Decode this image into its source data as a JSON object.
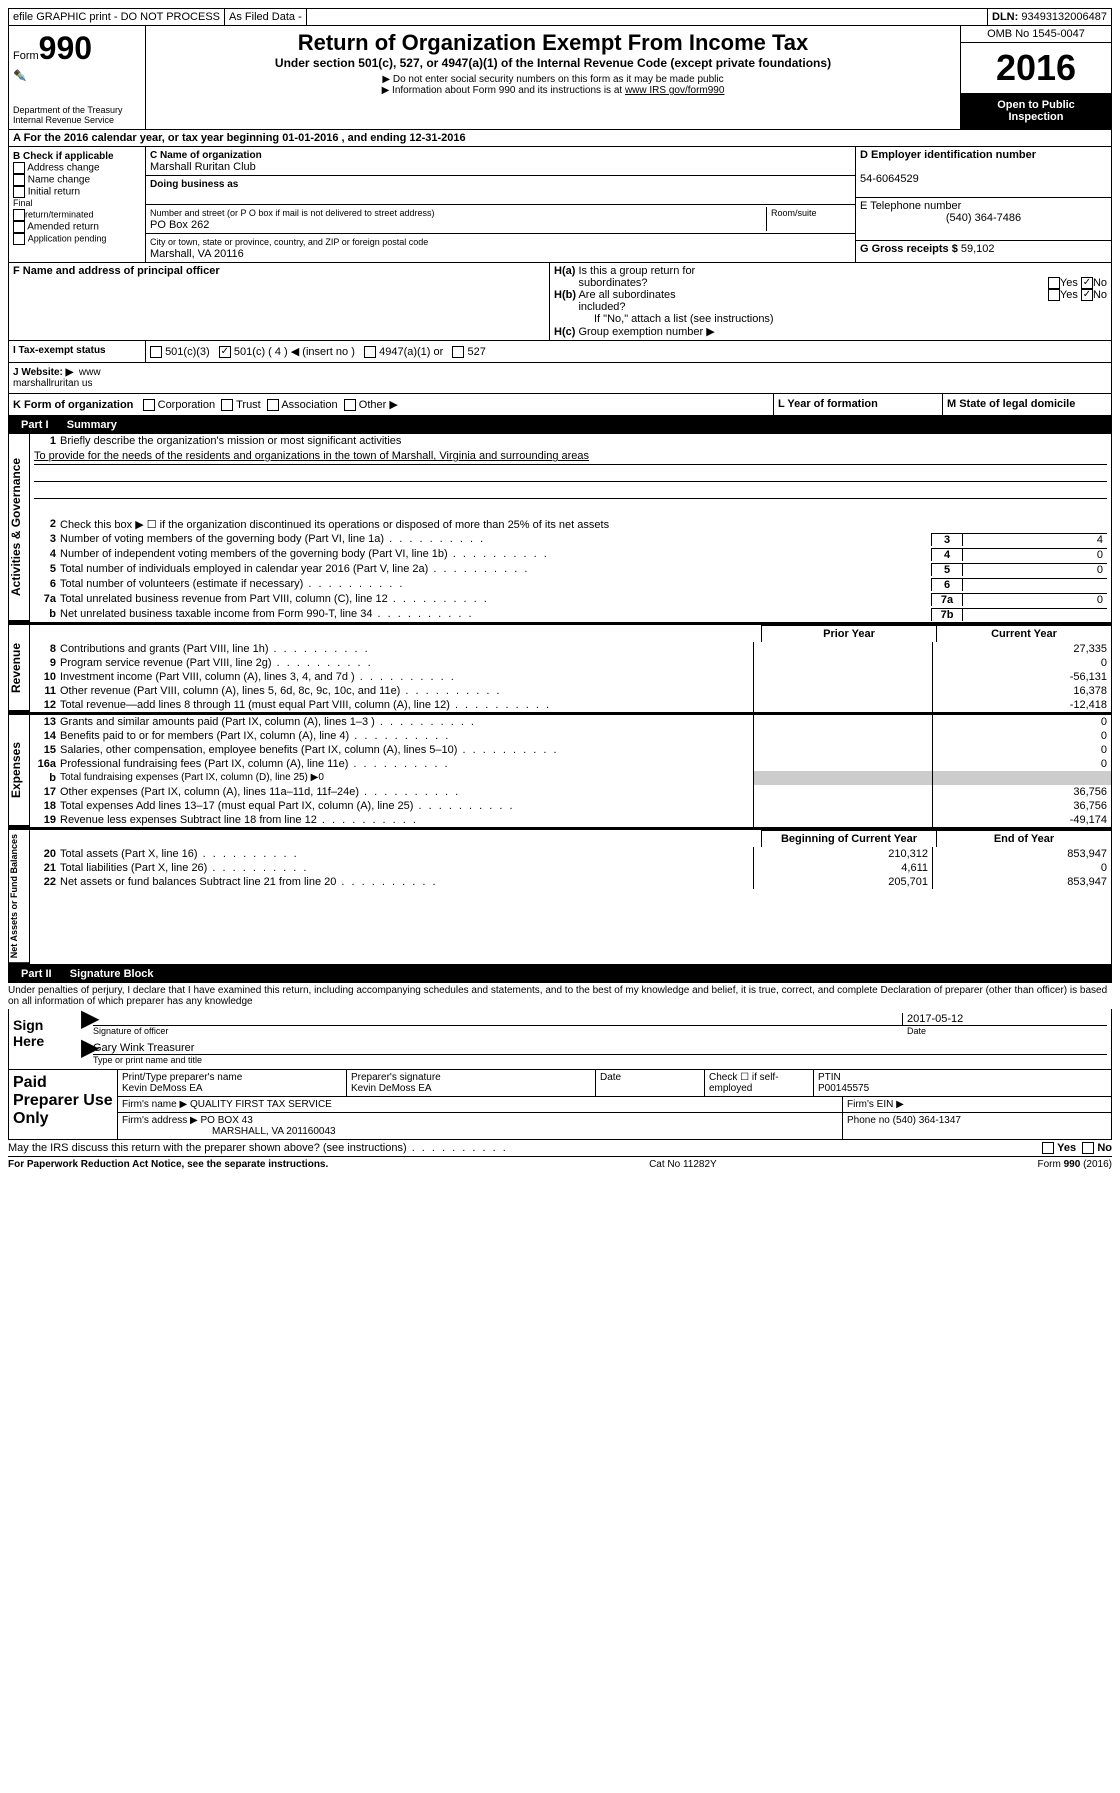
{
  "top": {
    "efile": "efile GRAPHIC print - DO NOT PROCESS",
    "asfiled": "As Filed Data -",
    "dln_label": "DLN:",
    "dln": "93493132006487"
  },
  "header": {
    "form_prefix": "Form",
    "form_no": "990",
    "dept1": "Department of the Treasury",
    "dept2": "Internal Revenue Service",
    "title": "Return of Organization Exempt From Income Tax",
    "subtitle": "Under section 501(c), 527, or 4947(a)(1) of the Internal Revenue Code (except private foundations)",
    "note1": "▶ Do not enter social security numbers on this form as it may be made public",
    "note2_pre": "▶ Information about Form 990 and its instructions is at ",
    "note2_link": "www IRS gov/form990",
    "omb": "OMB No 1545-0047",
    "year": "2016",
    "open1": "Open to Public",
    "open2": "Inspection"
  },
  "a": {
    "text": "A  For the 2016 calendar year, or tax year beginning 01-01-2016   , and ending 12-31-2016"
  },
  "b": {
    "label": "B Check if applicable",
    "opts": [
      "Address change",
      "Name change",
      "Initial return",
      "Final return/terminated",
      "Amended return",
      "Application pending"
    ]
  },
  "c": {
    "name_label": "C Name of organization",
    "name": "Marshall Ruritan Club",
    "dba_label": "Doing business as",
    "dba": "",
    "street_label": "Number and street (or P O  box if mail is not delivered to street address)",
    "room_label": "Room/suite",
    "street": "PO Box 262",
    "city_label": "City or town, state or province, country, and ZIP or foreign postal code",
    "city": "Marshall, VA  20116",
    "f_label": "F  Name and address of principal officer"
  },
  "d": {
    "ein_label": "D Employer identification number",
    "ein": "54-6064529",
    "phone_label": "E Telephone number",
    "phone": "(540) 364-7486",
    "gross_label": "G Gross receipts $",
    "gross": "59,102"
  },
  "h": {
    "ha": "H(a)  Is this a group return for subordinates?",
    "hb": "H(b)  Are all subordinates included?",
    "hb_note": "If \"No,\" attach a list  (see instructions)",
    "hc": "H(c)  Group exemption number ▶",
    "yes": "Yes",
    "no": "No"
  },
  "i": {
    "label": "I   Tax-exempt status",
    "o1": "501(c)(3)",
    "o2": "501(c) ( 4 ) ◀ (insert no )",
    "o3": "4947(a)(1) or",
    "o4": "527"
  },
  "j": {
    "label": "J   Website: ▶",
    "val": "www marshallruritan us"
  },
  "k": {
    "label": "K Form of organization",
    "opts": [
      "Corporation",
      "Trust",
      "Association",
      "Other ▶"
    ],
    "l_label": "L Year of formation",
    "m_label": "M State of legal domicile"
  },
  "part1": {
    "header": "Part I     Summary",
    "l1": "Briefly describe the organization's mission or most significant activities",
    "mission": "To provide for the needs of the residents and organizations in the town of Marshall, Virginia and surrounding areas",
    "l2": "Check this box ▶ ☐  if the organization discontinued its operations or disposed of more than 25% of its net assets",
    "lines_gov": [
      {
        "n": "3",
        "t": "Number of voting members of the governing body (Part VI, line 1a)",
        "box": "3",
        "v": "4"
      },
      {
        "n": "4",
        "t": "Number of independent voting members of the governing body (Part VI, line 1b)",
        "box": "4",
        "v": "0"
      },
      {
        "n": "5",
        "t": "Total number of individuals employed in calendar year 2016 (Part V, line 2a)",
        "box": "5",
        "v": "0"
      },
      {
        "n": "6",
        "t": "Total number of volunteers (estimate if necessary)",
        "box": "6",
        "v": ""
      },
      {
        "n": "7a",
        "t": "Total unrelated business revenue from Part VIII, column (C), line 12",
        "box": "7a",
        "v": "0"
      },
      {
        "n": "b",
        "t": "Net unrelated business taxable income from Form 990-T, line 34",
        "box": "7b",
        "v": ""
      }
    ],
    "prior_h": "Prior Year",
    "curr_h": "Current Year",
    "rev": [
      {
        "n": "8",
        "t": "Contributions and grants (Part VIII, line 1h)",
        "p": "",
        "c": "27,335"
      },
      {
        "n": "9",
        "t": "Program service revenue (Part VIII, line 2g)",
        "p": "",
        "c": "0"
      },
      {
        "n": "10",
        "t": "Investment income (Part VIII, column (A), lines 3, 4, and 7d )",
        "p": "",
        "c": "-56,131"
      },
      {
        "n": "11",
        "t": "Other revenue (Part VIII, column (A), lines 5, 6d, 8c, 9c, 10c, and 11e)",
        "p": "",
        "c": "16,378"
      },
      {
        "n": "12",
        "t": "Total revenue—add lines 8 through 11 (must equal Part VIII, column (A), line 12)",
        "p": "",
        "c": "-12,418"
      }
    ],
    "exp": [
      {
        "n": "13",
        "t": "Grants and similar amounts paid (Part IX, column (A), lines 1–3 )",
        "p": "",
        "c": "0"
      },
      {
        "n": "14",
        "t": "Benefits paid to or for members (Part IX, column (A), line 4)",
        "p": "",
        "c": "0"
      },
      {
        "n": "15",
        "t": "Salaries, other compensation, employee benefits (Part IX, column (A), lines 5–10)",
        "p": "",
        "c": "0"
      },
      {
        "n": "16a",
        "t": "Professional fundraising fees (Part IX, column (A), line 11e)",
        "p": "",
        "c": "0"
      },
      {
        "n": "b",
        "t": "Total fundraising expenses (Part IX, column (D), line 25) ▶0",
        "p": "",
        "c": "",
        "nocols": true
      },
      {
        "n": "17",
        "t": "Other expenses (Part IX, column (A), lines 11a–11d, 11f–24e)",
        "p": "",
        "c": "36,756"
      },
      {
        "n": "18",
        "t": "Total expenses  Add lines 13–17 (must equal Part IX, column (A), line 25)",
        "p": "",
        "c": "36,756"
      },
      {
        "n": "19",
        "t": "Revenue less expenses  Subtract line 18 from line 12",
        "p": "",
        "c": "-49,174"
      }
    ],
    "beg_h": "Beginning of Current Year",
    "end_h": "End of Year",
    "net": [
      {
        "n": "20",
        "t": "Total assets (Part X, line 16)",
        "p": "210,312",
        "c": "853,947"
      },
      {
        "n": "21",
        "t": "Total liabilities (Part X, line 26)",
        "p": "4,611",
        "c": "0"
      },
      {
        "n": "22",
        "t": "Net assets or fund balances  Subtract line 21 from line 20",
        "p": "205,701",
        "c": "853,947"
      }
    ],
    "side_gov": "Activities & Governance",
    "side_rev": "Revenue",
    "side_exp": "Expenses",
    "side_net": "Net Assets or Fund Balances"
  },
  "part2": {
    "header": "Part II     Signature Block",
    "perjury": "Under penalties of perjury, I declare that I have examined this return, including accompanying schedules and statements, and to the best of my knowledge and belief, it is true, correct, and complete  Declaration of preparer (other than officer) is based on all information of which preparer has any knowledge",
    "sign_here": "Sign Here",
    "sig_officer": "Signature of officer",
    "date": "Date",
    "sig_date": "2017-05-12",
    "name_title": "Gary Wink Treasurer",
    "type_name": "Type or print name and title",
    "paid": "Paid Preparer Use Only",
    "prep_name_l": "Print/Type preparer's name",
    "prep_name": "Kevin DeMoss EA",
    "prep_sig_l": "Preparer's signature",
    "prep_sig": "Kevin DeMoss EA",
    "date_l": "Date",
    "check_l": "Check ☐ if self-employed",
    "ptin_l": "PTIN",
    "ptin": "P00145575",
    "firm_name_l": "Firm's name    ▶",
    "firm_name": "QUALITY FIRST TAX SERVICE",
    "firm_ein_l": "Firm's EIN ▶",
    "firm_addr_l": "Firm's address ▶",
    "firm_addr1": "PO BOX 43",
    "firm_addr2": "MARSHALL, VA  201160043",
    "firm_phone_l": "Phone no",
    "firm_phone": "(540) 364-1347",
    "discuss": "May the IRS discuss this return with the preparer shown above? (see instructions)",
    "yes": "Yes",
    "no": "No"
  },
  "footer": {
    "left": "For Paperwork Reduction Act Notice, see the separate instructions.",
    "mid": "Cat  No  11282Y",
    "right": "Form 990 (2016)"
  }
}
